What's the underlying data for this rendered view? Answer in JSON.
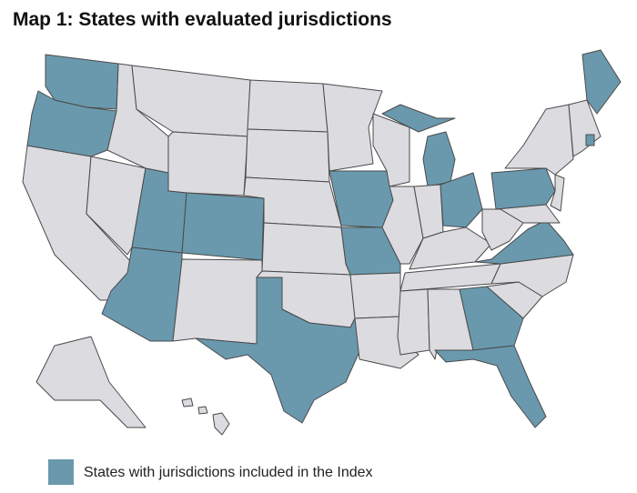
{
  "title": "Map 1: States with evaluated jurisdictions",
  "legend": {
    "label": "States with jurisdictions included in the Index"
  }
}
